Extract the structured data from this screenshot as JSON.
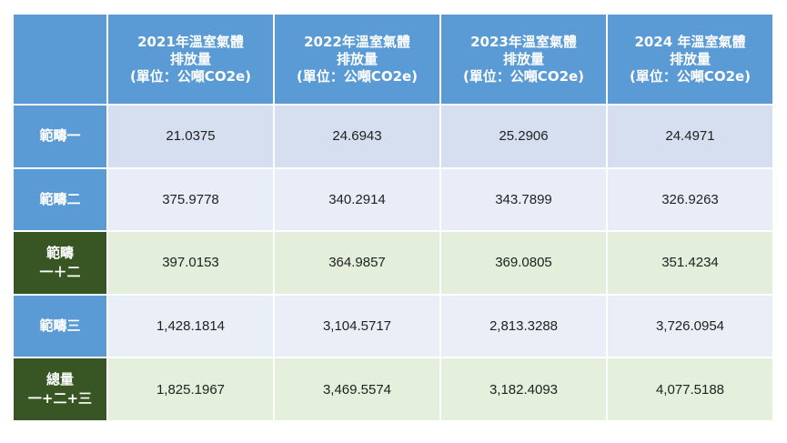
{
  "table": {
    "header": {
      "corner": "",
      "columns": [
        "2021年溫室氣體\n排放量\n(單位：公噸CO2e)",
        "2022年溫室氣體\n排放量\n(單位：公噸CO2e)",
        "2023年溫室氣體\n排放量\n(單位：公噸CO2e)",
        "2024 年溫室氣體\n排放量\n(單位：公噸CO2e)"
      ]
    },
    "rows": [
      {
        "label": "範疇一",
        "style": "blue",
        "values": [
          "21.0375",
          "24.6943",
          "25.2906",
          "24.4971"
        ]
      },
      {
        "label": "範疇二",
        "style": "blue",
        "values": [
          "375.9778",
          "340.2914",
          "343.7899",
          "326.9263"
        ]
      },
      {
        "label": "範疇\n一＋二",
        "style": "green",
        "values": [
          "397.0153",
          "364.9857",
          "369.0805",
          "351.4234"
        ]
      },
      {
        "label": "範疇三",
        "style": "blue",
        "values": [
          "1,428.1814",
          "3,104.5717",
          "2,813.3288",
          "3,726.0954"
        ]
      },
      {
        "label": "總量\n一+二+三",
        "style": "green",
        "values": [
          "1,825.1967",
          "3,469.5574",
          "3,182.4093",
          "4,077.5188"
        ]
      }
    ]
  },
  "colors": {
    "header_blue": "#5b9bd5",
    "dark_green": "#375623",
    "row_blue_dark": "#d5dff0",
    "row_blue_light": "#e8edf7",
    "row_green_light": "#e3eedb"
  }
}
